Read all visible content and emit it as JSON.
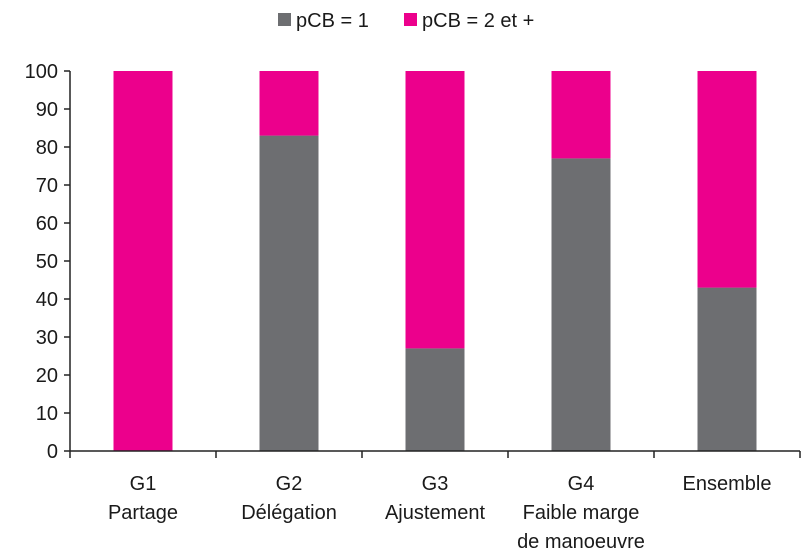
{
  "chart_data": {
    "type": "bar",
    "stacked": true,
    "categories": [
      [
        "G1",
        "Partage"
      ],
      [
        "G2",
        "Délégation"
      ],
      [
        "G3",
        "Ajustement"
      ],
      [
        "G4",
        "Faible marge",
        "de manoeuvre"
      ],
      [
        "Ensemble"
      ]
    ],
    "series": [
      {
        "name": "pCB = 1",
        "color": "#6d6e71",
        "values": [
          0,
          83,
          27,
          77,
          43
        ]
      },
      {
        "name": "pCB = 2 et +",
        "color": "#ec008c",
        "values": [
          100,
          17,
          73,
          23,
          57
        ]
      }
    ],
    "ylim": [
      0,
      100
    ],
    "yticks": [
      0,
      10,
      20,
      30,
      40,
      50,
      60,
      70,
      80,
      90,
      100
    ],
    "grid": false,
    "legend_position": "top"
  }
}
